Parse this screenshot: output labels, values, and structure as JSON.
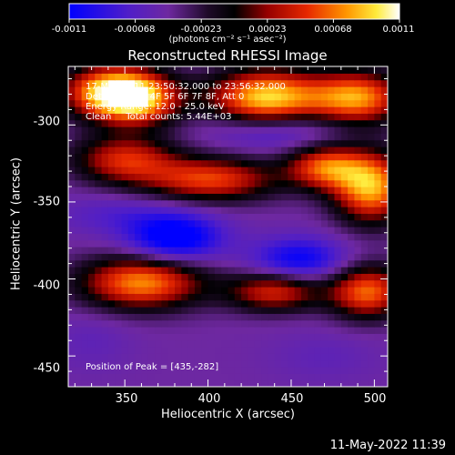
{
  "chart_data": {
    "type": "heatmap",
    "title": "Reconstructed RHESSI Image",
    "xlabel": "Heliocentric X (arcsec)",
    "ylabel": "Heliocentric Y (arcsec)",
    "xlim": [
      316,
      508
    ],
    "ylim": [
      -470,
      -262
    ],
    "xticks": [
      "350",
      "400",
      "450",
      "500"
    ],
    "yticks": [
      "-300",
      "-350",
      "-400",
      "-450"
    ],
    "colorbar": {
      "title": "(photons cm⁻² s⁻¹ asec⁻²)",
      "range": [
        -0.0011,
        0.0011
      ],
      "ticks": [
        "-0.0011",
        "-0.00068",
        "-0.00023",
        "0.00023",
        "0.00068",
        "0.0011"
      ]
    },
    "annotations": {
      "time": "17-May-2011 23:50:32.000 to 23:56:32.000",
      "detectors": "Detectors: 3F 4F 5F 6F 7F 8F, Att 0",
      "energy": "Energy Range: 12.0 - 25.0 keV",
      "method": "Clean     Total counts: 5.44E+03",
      "peak": "Position of Peak = [435,-282]"
    },
    "peak": [
      435,
      -282
    ],
    "blobs": [
      {
        "x": 340,
        "y": -278,
        "v": 0.0009,
        "sx": 20,
        "sy": 12
      },
      {
        "x": 358,
        "y": -283,
        "v": 0.0008,
        "sx": 18,
        "sy": 12
      },
      {
        "x": 435,
        "y": -282,
        "v": 0.0011,
        "sx": 24,
        "sy": 13
      },
      {
        "x": 490,
        "y": -282,
        "v": 0.0009,
        "sx": 20,
        "sy": 12
      },
      {
        "x": 350,
        "y": -322,
        "v": 0.0006,
        "sx": 22,
        "sy": 11
      },
      {
        "x": 402,
        "y": -335,
        "v": 0.0007,
        "sx": 28,
        "sy": 10
      },
      {
        "x": 498,
        "y": -340,
        "v": 0.001,
        "sx": 16,
        "sy": 16
      },
      {
        "x": 470,
        "y": -327,
        "v": 0.0007,
        "sx": 16,
        "sy": 10
      },
      {
        "x": 360,
        "y": -402,
        "v": 0.0009,
        "sx": 26,
        "sy": 12
      },
      {
        "x": 440,
        "y": -408,
        "v": 0.0006,
        "sx": 20,
        "sy": 9
      },
      {
        "x": 496,
        "y": -408,
        "v": 0.0008,
        "sx": 16,
        "sy": 12
      },
      {
        "x": 380,
        "y": -373,
        "v": -0.0011,
        "sx": 20,
        "sy": 11
      },
      {
        "x": 455,
        "y": -387,
        "v": -0.0009,
        "sx": 20,
        "sy": 10
      },
      {
        "x": 440,
        "y": -303,
        "v": -0.0007,
        "sx": 28,
        "sy": 9
      },
      {
        "x": 345,
        "y": -358,
        "v": -0.0005,
        "sx": 26,
        "sy": 9
      },
      {
        "x": 330,
        "y": -440,
        "v": -0.0004,
        "sx": 18,
        "sy": 14
      },
      {
        "x": 470,
        "y": -450,
        "v": -0.0004,
        "sx": 24,
        "sy": 12
      }
    ],
    "base": -0.00045
  },
  "date_stamp": "11-May-2022 11:39"
}
